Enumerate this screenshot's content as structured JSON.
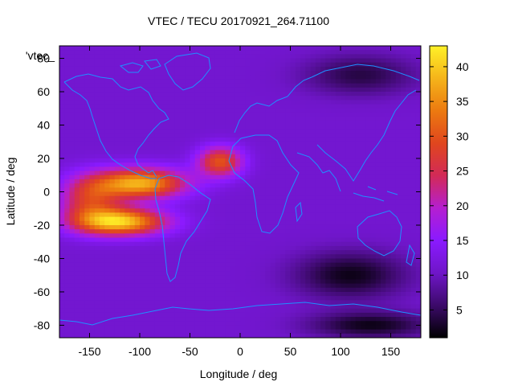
{
  "chart_data": {
    "type": "heatmap",
    "title": "VTEC / TECU 20170921_264.71100",
    "xlabel": "Longitude / deg",
    "ylabel": "Latitude / deg",
    "legend_key": "'vtec_",
    "xlim": [
      -180,
      180
    ],
    "ylim": [
      -87.5,
      87.5
    ],
    "xticks": [
      -150,
      -100,
      -50,
      0,
      50,
      100,
      150
    ],
    "yticks": [
      -80,
      -60,
      -40,
      -20,
      0,
      20,
      40,
      60,
      80
    ],
    "colorbar": {
      "range": [
        1,
        43
      ],
      "ticks": [
        5,
        10,
        15,
        20,
        25,
        30,
        35,
        40
      ],
      "palette": [
        "#000000",
        "#3c0a6a",
        "#6f16c8",
        "#8a1aff",
        "#b51fd0",
        "#d22a57",
        "#e0461e",
        "#ec7a10",
        "#f5b41a",
        "#fff128"
      ]
    },
    "field_features": [
      {
        "feature": "background",
        "lon": 0,
        "lat": 0,
        "vtec": 11
      },
      {
        "feature": "equatorial anomaly crest (north)",
        "lon": -100,
        "lat": 5,
        "vtec": 38
      },
      {
        "feature": "equatorial anomaly crest (south)",
        "lon": -120,
        "lat": -18,
        "vtec": 40
      },
      {
        "feature": "atlantic extension",
        "lon": -20,
        "lat": 18,
        "vtec": 30
      },
      {
        "feature": "central pacific band",
        "lon": -150,
        "lat": -5,
        "vtec": 26
      },
      {
        "feature": "indian ocean minimum",
        "lon": 110,
        "lat": -50,
        "vtec": 2
      },
      {
        "feature": "antarctic minimum",
        "lon": 130,
        "lat": -80,
        "vtec": 2
      },
      {
        "feature": "arctic asia minimum",
        "lon": 120,
        "lat": 70,
        "vtec": 4
      }
    ]
  }
}
